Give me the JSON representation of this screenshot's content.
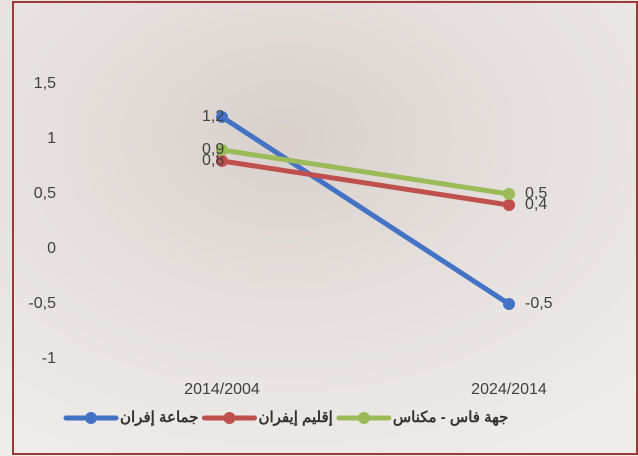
{
  "chart_data": {
    "type": "line",
    "categories": [
      "2014/2004",
      "2024/2014"
    ],
    "series": [
      {
        "name": "جماعة إفران",
        "color": "#4472c4",
        "values": [
          1.2,
          -0.5
        ],
        "value_labels": [
          "1,2",
          "-0,5"
        ]
      },
      {
        "name": "إقليم إيفران",
        "color": "#c0504d",
        "values": [
          0.8,
          0.4
        ],
        "value_labels": [
          "0,8",
          "0,4"
        ]
      },
      {
        "name": "جهة فاس - مكناس",
        "color": "#9bbb59",
        "values": [
          0.9,
          0.5
        ],
        "value_labels": [
          "0,9",
          "0,5"
        ]
      }
    ],
    "ylim": [
      -1.2,
      2.2
    ],
    "yticks": [
      {
        "value": 1.5,
        "label": "1,5"
      },
      1,
      {
        "value": 0.5,
        "label": "0,5"
      },
      0,
      {
        "value": -0.5,
        "label": "-0,5"
      },
      -1
    ],
    "grid": false
  }
}
